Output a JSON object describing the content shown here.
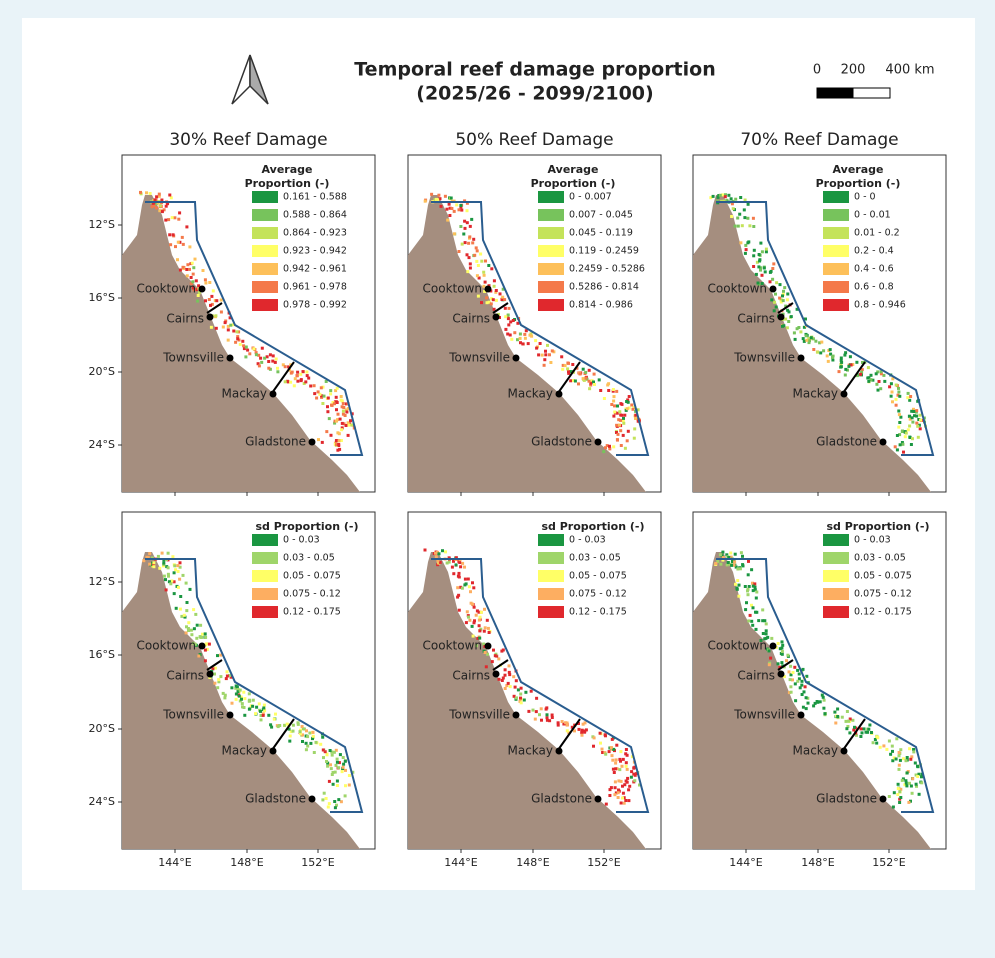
{
  "header": {
    "title_lines": [
      "Temporal reef damage proportion",
      "(2025/26 - 2099/2100)"
    ],
    "scale_labels": [
      "0",
      "200",
      "400 km"
    ]
  },
  "columns": [
    "30% Reef Damage",
    "50% Reef Damage",
    "70% Reef Damage"
  ],
  "lat_labels": [
    "12°S",
    "16°S",
    "20°S",
    "24°S"
  ],
  "lon_labels": [
    "144°E",
    "148°E",
    "152°E"
  ],
  "cities": [
    "Cooktown",
    "Cairns",
    "Townsville",
    "Mackay",
    "Gladstone"
  ],
  "avg_colors": [
    "#1a9641",
    "#77c35c",
    "#c4e35a",
    "#ffff66",
    "#fdc05a",
    "#f4794a",
    "#e0282d"
  ],
  "sd_colors": [
    "#1a9641",
    "#9fd56a",
    "#ffff66",
    "#fdae61",
    "#e0282d"
  ],
  "panels": [
    {
      "legend_title": [
        "Average",
        "Proportion (-)"
      ],
      "legend_items": [
        "0.161 - 0.588",
        "0.588 - 0.864",
        "0.864 - 0.923",
        "0.923 - 0.942",
        "0.942 - 0.961",
        "0.961 - 0.978",
        "0.978 - 0.992"
      ]
    },
    {
      "legend_title": [
        "Average",
        "Proportion (-)"
      ],
      "legend_items": [
        "0 - 0.007",
        "0.007 - 0.045",
        "0.045 - 0.119",
        "0.119 - 0.2459",
        "0.2459 - 0.5286",
        "0.5286 - 0.814",
        "0.814 - 0.986"
      ]
    },
    {
      "legend_title": [
        "Average",
        "Proportion (-)"
      ],
      "legend_items": [
        "0 - 0",
        "0 - 0.01",
        "0.01 - 0.2",
        "0.2 - 0.4",
        "0.4 - 0.6",
        "0.6 - 0.8",
        "0.8 - 0.946"
      ]
    },
    {
      "legend_title": [
        "sd Proportion (-)"
      ],
      "legend_items": [
        "0 - 0.03",
        "0.03 - 0.05",
        "0.05 - 0.075",
        "0.075 - 0.12",
        "0.12 - 0.175"
      ]
    },
    {
      "legend_title": [
        "sd Proportion (-)"
      ],
      "legend_items": [
        "0 - 0.03",
        "0.03 - 0.05",
        "0.05 - 0.075",
        "0.075 - 0.12",
        "0.12 - 0.175"
      ]
    },
    {
      "legend_title": [
        "sd Proportion (-)"
      ],
      "legend_items": [
        "0 - 0.03",
        "0.03 - 0.05",
        "0.05 - 0.075",
        "0.075 - 0.12",
        "0.12 - 0.175"
      ]
    }
  ]
}
